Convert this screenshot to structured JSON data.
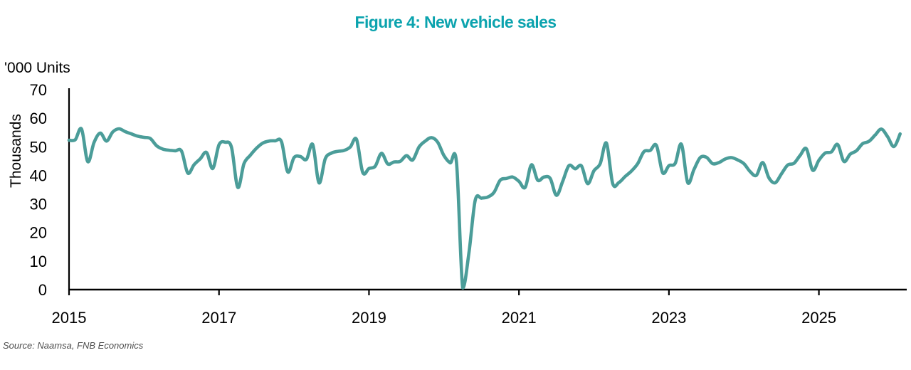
{
  "chart_data": {
    "type": "line",
    "title": "Figure 4: New vehicle sales",
    "units_label": "'000 Units",
    "y_axis_title": "Thousands",
    "source": "Source: Naamsa, FNB Economics",
    "series_name": "New vehicle sales, monthly, '000 units",
    "x_start": "2015-01",
    "x_end": "2026-02",
    "points_per_year": 12,
    "x_tick_labels": [
      "2015",
      "2017",
      "2019",
      "2021",
      "2023",
      "2025"
    ],
    "y_ticks": [
      0,
      10,
      20,
      30,
      40,
      50,
      60,
      70
    ],
    "ylim": [
      0,
      70
    ],
    "grid": false,
    "legend": "none",
    "line_color": "#4b9d99",
    "title_color": "#0ba3ae",
    "axis_color": "#000000",
    "values": [
      52.3,
      52.5,
      56.2,
      44.8,
      51.5,
      54.8,
      52.0,
      55.2,
      56.3,
      55.3,
      54.5,
      53.7,
      53.3,
      52.9,
      50.4,
      49.2,
      48.8,
      48.6,
      48.5,
      40.8,
      43.7,
      45.8,
      48.0,
      42.4,
      50.7,
      51.6,
      49.8,
      35.8,
      44.1,
      47.0,
      49.5,
      51.3,
      52.0,
      52.1,
      51.8,
      41.2,
      46.2,
      46.6,
      45.6,
      50.8,
      37.4,
      45.8,
      47.8,
      48.4,
      48.7,
      49.9,
      52.6,
      41.0,
      42.4,
      43.2,
      47.7,
      44.0,
      44.7,
      44.9,
      46.9,
      45.4,
      49.9,
      52.0,
      53.2,
      51.6,
      46.9,
      44.4,
      44.5,
      0.6,
      12.9,
      31.3,
      32.0,
      32.4,
      34.0,
      38.3,
      38.9,
      39.4,
      37.9,
      35.8,
      43.7,
      38.3,
      39.4,
      38.9,
      33.0,
      37.9,
      43.4,
      42.3,
      43.3,
      37.1,
      41.6,
      44.1,
      51.3,
      37.1,
      37.5,
      39.6,
      41.5,
      44.1,
      48.3,
      48.7,
      50.5,
      40.9,
      43.4,
      44.2,
      50.9,
      37.5,
      42.0,
      46.2,
      46.3,
      44.1,
      44.5,
      45.7,
      46.2,
      45.4,
      44.1,
      41.3,
      40.0,
      44.5,
      39.1,
      37.4,
      40.5,
      43.6,
      44.2,
      47.0,
      49.3,
      41.8,
      45.3,
      47.8,
      48.2,
      50.8,
      44.9,
      47.4,
      48.6,
      51.1,
      51.9,
      54.1,
      56.2,
      53.5,
      50.1,
      54.5
    ]
  }
}
